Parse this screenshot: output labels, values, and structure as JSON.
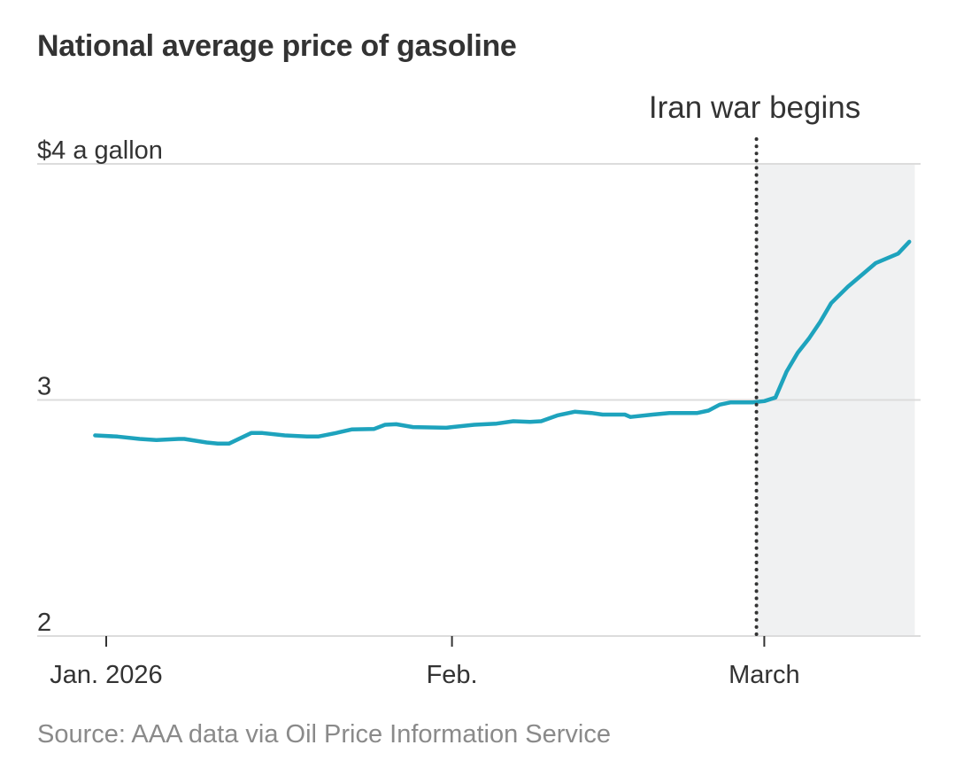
{
  "title": "National average price of gasoline",
  "source": "Source: AAA data via Oil Price Information Service",
  "watermark": "",
  "colors": {
    "line": "#1ea3bd",
    "shade": "#f0f1f2",
    "grid": "#dcdcdc",
    "marker": "#333333"
  },
  "chart_data": {
    "type": "line",
    "title": "National average price of gasoline",
    "xlabel": "",
    "ylabel": "$ a gallon",
    "ylim": [
      2,
      4
    ],
    "y_ticks": [
      {
        "value": 4,
        "label": "$4 a gallon"
      },
      {
        "value": 3,
        "label": "3"
      },
      {
        "value": 2,
        "label": "2"
      }
    ],
    "x_ticks": [
      {
        "day": 0,
        "label": "Jan. 2026"
      },
      {
        "day": 31,
        "label": "Feb."
      },
      {
        "day": 59,
        "label": "March"
      }
    ],
    "x_unit": "days since Jan. 1, 2026",
    "xlim": [
      -1,
      72
    ],
    "grid": true,
    "annotation": {
      "day": 58.3,
      "label": "Iran war begins",
      "shade_from_day": 58.3,
      "shade_to_day": 72.5
    },
    "series": [
      {
        "name": "National average price",
        "points": [
          [
            -1,
            2.85
          ],
          [
            1,
            2.845
          ],
          [
            3,
            2.835
          ],
          [
            4.5,
            2.83
          ],
          [
            6.5,
            2.835
          ],
          [
            7,
            2.835
          ],
          [
            9,
            2.82
          ],
          [
            10,
            2.815
          ],
          [
            11,
            2.815
          ],
          [
            13,
            2.86
          ],
          [
            14,
            2.86
          ],
          [
            16,
            2.85
          ],
          [
            18,
            2.845
          ],
          [
            19,
            2.845
          ],
          [
            20.6,
            2.86
          ],
          [
            22,
            2.875
          ],
          [
            24,
            2.877
          ],
          [
            25,
            2.895
          ],
          [
            26,
            2.897
          ],
          [
            27.5,
            2.885
          ],
          [
            30.5,
            2.882
          ],
          [
            31,
            2.885
          ],
          [
            33,
            2.895
          ],
          [
            35,
            2.9
          ],
          [
            36.5,
            2.91
          ],
          [
            38,
            2.907
          ],
          [
            39,
            2.91
          ],
          [
            40.5,
            2.935
          ],
          [
            42,
            2.95
          ],
          [
            43.5,
            2.945
          ],
          [
            44.5,
            2.938
          ],
          [
            46.5,
            2.938
          ],
          [
            47,
            2.928
          ],
          [
            49,
            2.938
          ],
          [
            50.5,
            2.945
          ],
          [
            53,
            2.945
          ],
          [
            54,
            2.955
          ],
          [
            55,
            2.98
          ],
          [
            56,
            2.99
          ],
          [
            58,
            2.99
          ],
          [
            59,
            2.995
          ],
          [
            60,
            3.01
          ],
          [
            61,
            3.12
          ],
          [
            62,
            3.2
          ],
          [
            63,
            3.26
          ],
          [
            64,
            3.33
          ],
          [
            65,
            3.41
          ],
          [
            66.5,
            3.48
          ],
          [
            68,
            3.54
          ],
          [
            69,
            3.58
          ],
          [
            71,
            3.62
          ],
          [
            72,
            3.67
          ]
        ]
      }
    ]
  }
}
